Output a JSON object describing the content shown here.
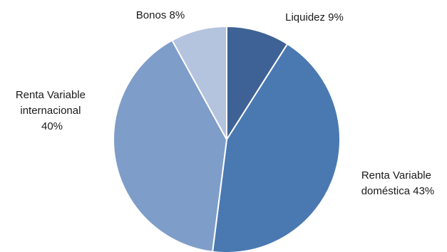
{
  "chart_data": {
    "type": "pie",
    "title": "",
    "slices": [
      {
        "label_lines": [
          "Liquidez 9%"
        ],
        "value": 9,
        "color": "#3E6295"
      },
      {
        "label_lines": [
          "Renta Variable",
          "doméstica 43%"
        ],
        "value": 43,
        "color": "#4A79B2"
      },
      {
        "label_lines": [
          "Renta Variable",
          "internacional",
          "40%"
        ],
        "value": 40,
        "color": "#7F9DC9"
      },
      {
        "label_lines": [
          "Bonos 8%"
        ],
        "value": 8,
        "color": "#B4C3DE"
      }
    ],
    "start": "12 o'clock",
    "direction": "clockwise",
    "legend": "none"
  }
}
